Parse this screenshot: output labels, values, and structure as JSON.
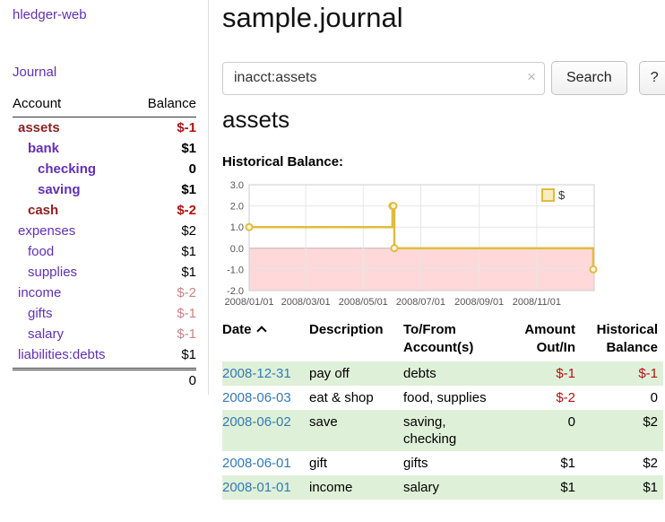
{
  "app": {
    "title": "hledger-web",
    "nav_journal": "Journal"
  },
  "colors": {
    "purple_link": "#6130b4",
    "blue_link": "#337ab7",
    "row_green": "#dff0d8",
    "negative_red": "#b11212",
    "negative_red_light": "#c98585"
  },
  "sidebar": {
    "header": {
      "account": "Account",
      "balance": "Balance"
    },
    "accounts": [
      {
        "name": "assets",
        "balance": "$-1",
        "indent": 0,
        "bold": true,
        "name_color": "darkred",
        "balance_color": "red"
      },
      {
        "name": "bank",
        "balance": "$1",
        "indent": 1,
        "bold": true,
        "name_color": "purple",
        "balance_color": "black"
      },
      {
        "name": "checking",
        "balance": "0",
        "indent": 2,
        "bold": true,
        "name_color": "purple",
        "balance_color": "black"
      },
      {
        "name": "saving",
        "balance": "$1",
        "indent": 2,
        "bold": true,
        "name_color": "purple",
        "balance_color": "black"
      },
      {
        "name": "cash",
        "balance": "$-2",
        "indent": 1,
        "bold": true,
        "name_color": "darkred",
        "balance_color": "red"
      },
      {
        "name": "expenses",
        "balance": "$2",
        "indent": 0,
        "bold": false,
        "name_color": "purple",
        "balance_color": "black"
      },
      {
        "name": "food",
        "balance": "$1",
        "indent": 1,
        "bold": false,
        "name_color": "purple",
        "balance_color": "black"
      },
      {
        "name": "supplies",
        "balance": "$1",
        "indent": 1,
        "bold": false,
        "name_color": "purple",
        "balance_color": "black"
      },
      {
        "name": "income",
        "balance": "$-2",
        "indent": 0,
        "bold": false,
        "name_color": "purple",
        "balance_color": "redlight"
      },
      {
        "name": "gifts",
        "balance": "$-1",
        "indent": 1,
        "bold": false,
        "name_color": "purple",
        "balance_color": "redlight"
      },
      {
        "name": "salary",
        "balance": "$-1",
        "indent": 1,
        "bold": false,
        "name_color": "purple",
        "balance_color": "redlight"
      },
      {
        "name": "liabilities:debts",
        "balance": "$1",
        "indent": 0,
        "bold": false,
        "name_color": "purple",
        "balance_color": "black"
      }
    ],
    "total": "0"
  },
  "main": {
    "title": "sample.journal",
    "search": {
      "value": "inacct:assets",
      "clear_icon": "×",
      "button": "Search",
      "help_button": "?"
    },
    "account_heading": "assets",
    "chart_label": "Historical Balance:"
  },
  "chart_data": {
    "type": "line",
    "title": "Historical Balance:",
    "legend_position": "top-right",
    "grid": true,
    "x_range": [
      "2008/01/01",
      "2009/01/01"
    ],
    "ylim": [
      -2,
      3
    ],
    "y_ticks": [
      3,
      2,
      1,
      0,
      -1,
      -2
    ],
    "x_ticks": [
      "2008/01/01",
      "2008/03/01",
      "2008/05/01",
      "2008/07/01",
      "2008/09/01",
      "2008/11/01"
    ],
    "series": [
      {
        "name": "$",
        "color": "#e2bb3d",
        "style": "step",
        "points": [
          [
            "2008/01/01",
            1
          ],
          [
            "2008/06/01",
            2
          ],
          [
            "2008/06/02",
            2
          ],
          [
            "2008/06/03",
            0
          ],
          [
            "2008/12/31",
            -1
          ]
        ]
      }
    ],
    "colors": {
      "negative_fill": "#ffd9d9",
      "zero_line": "#c3aeae",
      "grid_line": "#e6e6e6",
      "border": "#cccccc"
    }
  },
  "table": {
    "headers": [
      "Date",
      "Description",
      "To/From\nAccount(s)",
      "Amount\nOut/In",
      "Historical\nBalance"
    ],
    "rows": [
      {
        "date": "2008-12-31",
        "description": "pay off",
        "accounts": "debts",
        "amount": "$-1",
        "amount_color": "red",
        "balance": "$-1",
        "balance_color": "red",
        "green": true
      },
      {
        "date": "2008-06-03",
        "description": "eat & shop",
        "accounts": "food, supplies",
        "amount": "$-2",
        "amount_color": "red",
        "balance": "0",
        "balance_color": "black",
        "green": false
      },
      {
        "date": "2008-06-02",
        "description": "save",
        "accounts": "saving,\nchecking",
        "amount": "0",
        "amount_color": "black",
        "balance": "$2",
        "balance_color": "black",
        "green": true
      },
      {
        "date": "2008-06-01",
        "description": "gift",
        "accounts": "gifts",
        "amount": "$1",
        "amount_color": "black",
        "balance": "$2",
        "balance_color": "black",
        "green": false
      },
      {
        "date": "2008-01-01",
        "description": "income",
        "accounts": "salary",
        "amount": "$1",
        "amount_color": "black",
        "balance": "$1",
        "balance_color": "black",
        "green": true
      }
    ]
  }
}
